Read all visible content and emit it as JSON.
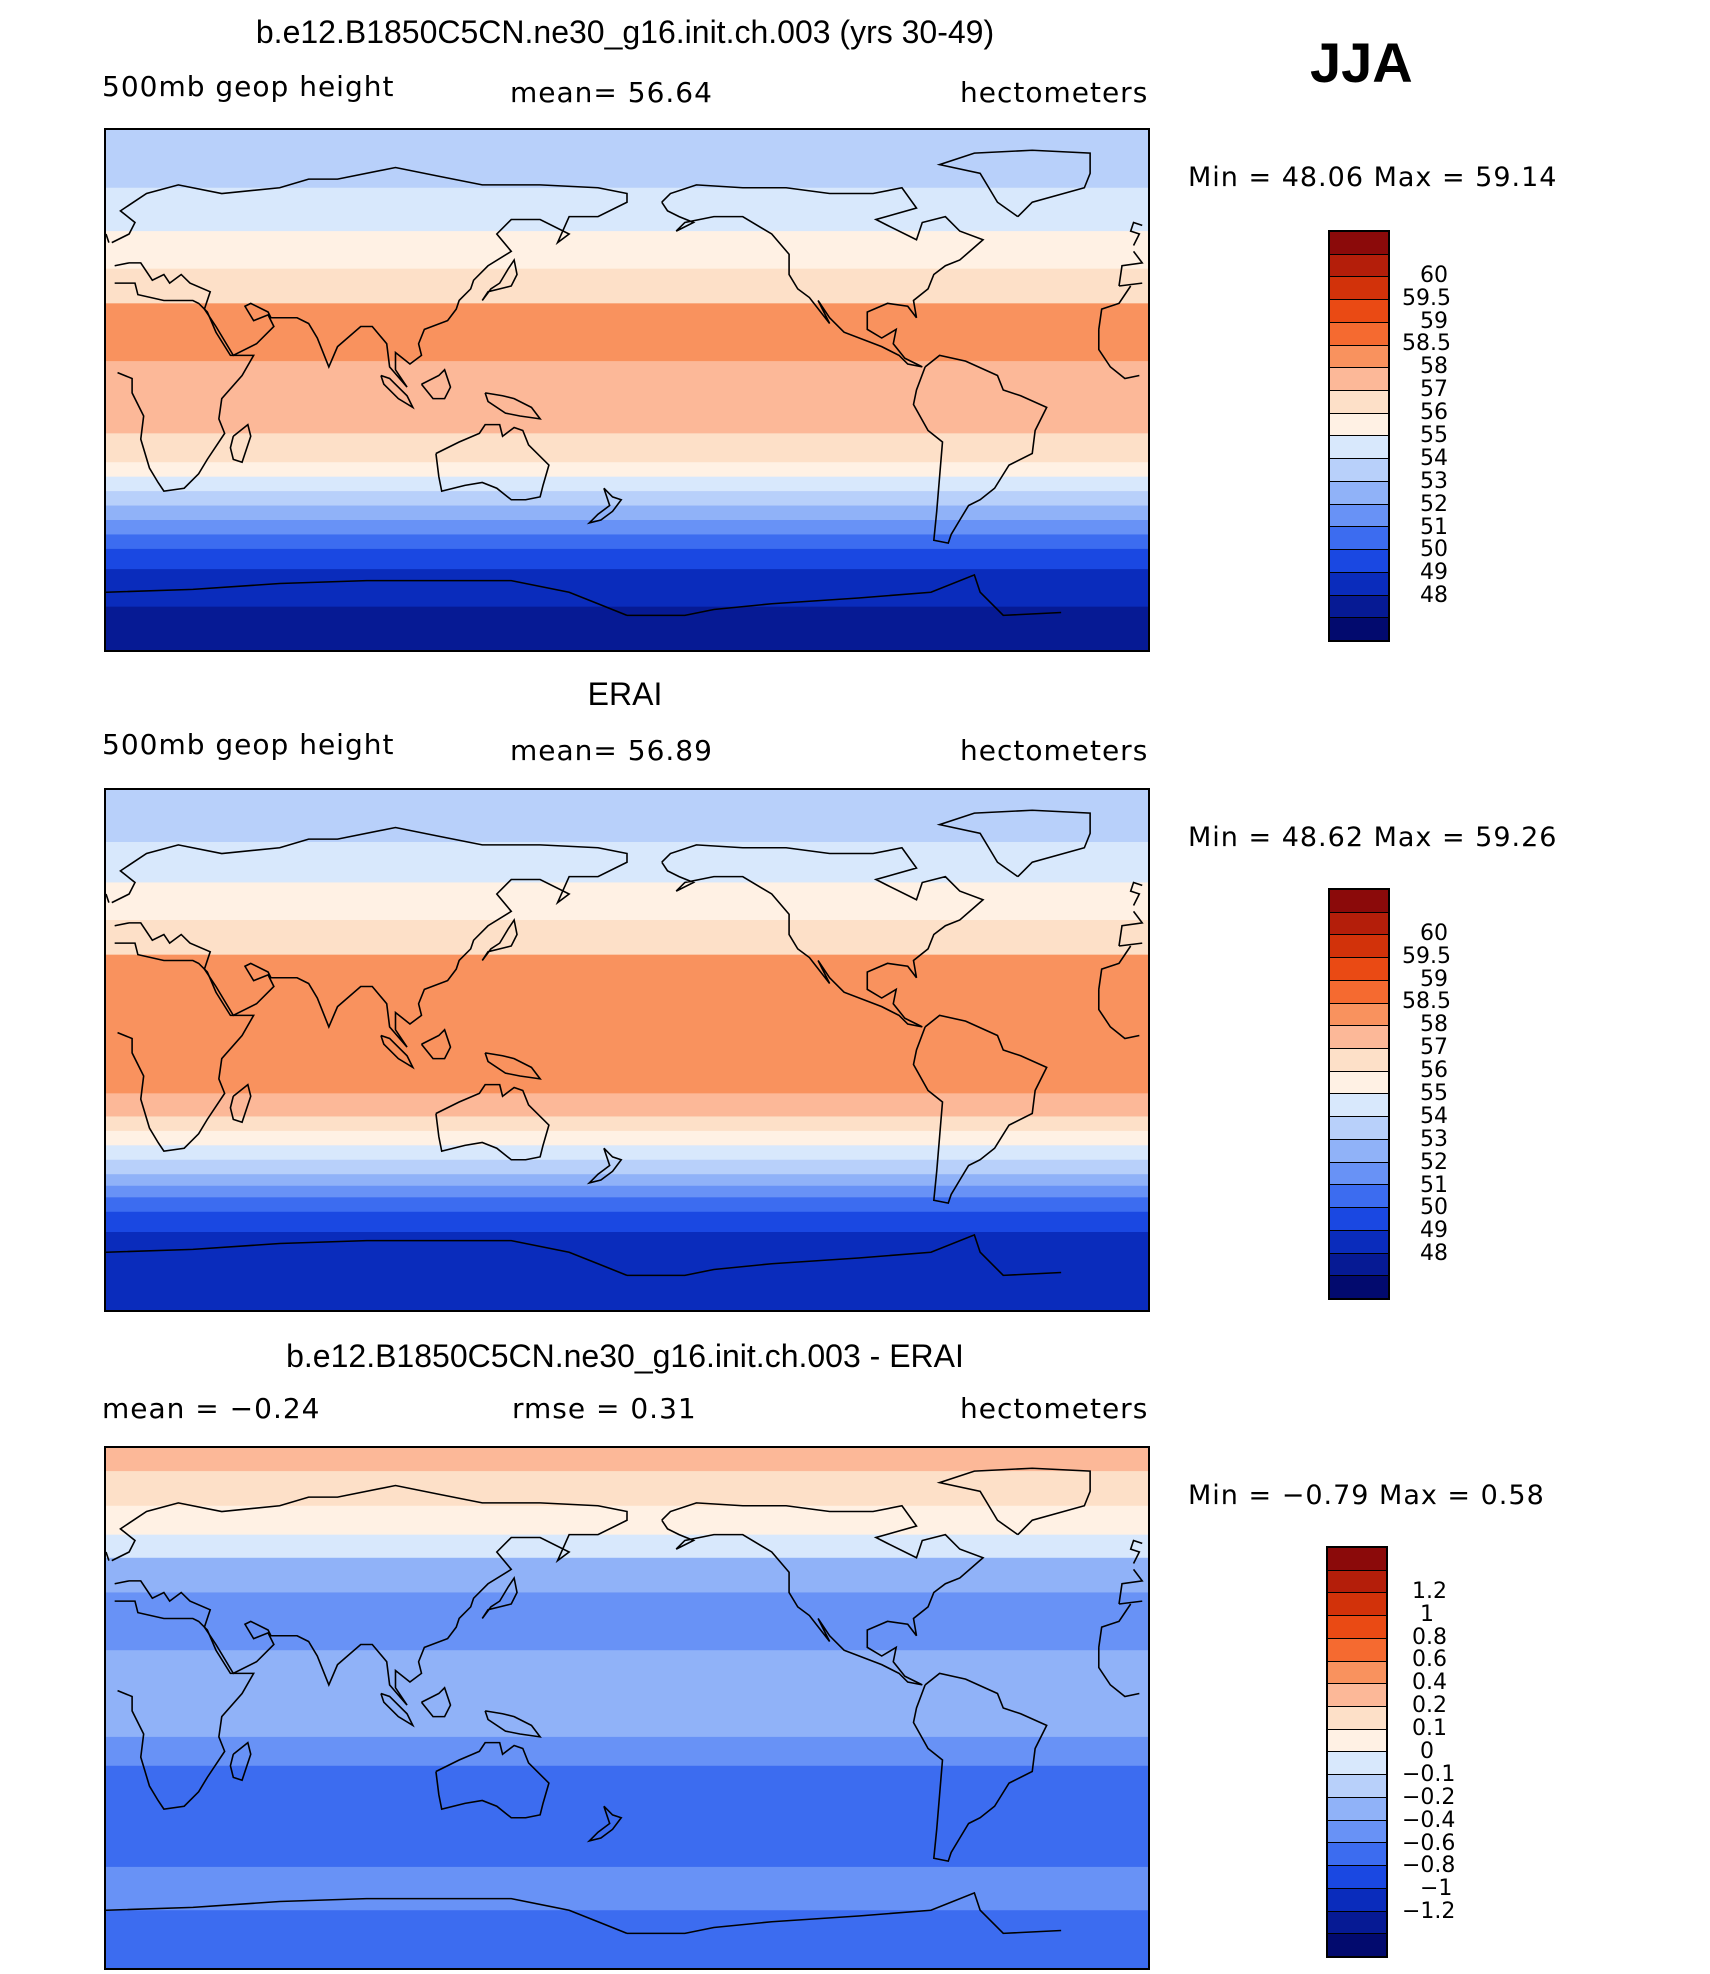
{
  "season": "JJA",
  "panels": [
    {
      "title": "b.e12.B1850C5CN.ne30_g16.init.ch.003 (yrs 30-49)",
      "left_label": "500mb  geop  height",
      "center_label": "mean=   56.64",
      "right_label": "hectometers",
      "minmax": "Min  =    48.06  Max  =    59.14",
      "scheme": "abs",
      "bands": [
        {
          "lat_from": 90,
          "lat_to": 70,
          "value": 54.5
        },
        {
          "lat_from": 70,
          "lat_to": 55,
          "value": 55.5
        },
        {
          "lat_from": 55,
          "lat_to": 42,
          "value": 56.5
        },
        {
          "lat_from": 42,
          "lat_to": 30,
          "value": 57.5
        },
        {
          "lat_from": 30,
          "lat_to": 10,
          "value": 58.75
        },
        {
          "lat_from": 10,
          "lat_to": -15,
          "value": 58.25
        },
        {
          "lat_from": -15,
          "lat_to": -25,
          "value": 57.5
        },
        {
          "lat_from": -25,
          "lat_to": -30,
          "value": 56.5
        },
        {
          "lat_from": -30,
          "lat_to": -35,
          "value": 55.5
        },
        {
          "lat_from": -35,
          "lat_to": -40,
          "value": 54.5
        },
        {
          "lat_from": -40,
          "lat_to": -45,
          "value": 53.5
        },
        {
          "lat_from": -45,
          "lat_to": -50,
          "value": 52.5
        },
        {
          "lat_from": -50,
          "lat_to": -55,
          "value": 51.5
        },
        {
          "lat_from": -55,
          "lat_to": -62,
          "value": 50.5
        },
        {
          "lat_from": -62,
          "lat_to": -75,
          "value": 49.5
        },
        {
          "lat_from": -75,
          "lat_to": -90,
          "value": 48.5
        }
      ]
    },
    {
      "title": "ERAI",
      "left_label": "500mb  geop  height",
      "center_label": "mean=   56.89",
      "right_label": "hectometers",
      "minmax": "Min  =    48.62  Max  =    59.26",
      "scheme": "abs",
      "bands": [
        {
          "lat_from": 90,
          "lat_to": 72,
          "value": 54.5
        },
        {
          "lat_from": 72,
          "lat_to": 58,
          "value": 55.5
        },
        {
          "lat_from": 58,
          "lat_to": 45,
          "value": 56.5
        },
        {
          "lat_from": 45,
          "lat_to": 33,
          "value": 57.5
        },
        {
          "lat_from": 33,
          "lat_to": 22,
          "value": 58.75
        },
        {
          "lat_from": 22,
          "lat_to": -15,
          "value": 58.75
        },
        {
          "lat_from": -15,
          "lat_to": -23,
          "value": 58.25
        },
        {
          "lat_from": -23,
          "lat_to": -28,
          "value": 57.5
        },
        {
          "lat_from": -28,
          "lat_to": -33,
          "value": 56.5
        },
        {
          "lat_from": -33,
          "lat_to": -38,
          "value": 55.5
        },
        {
          "lat_from": -38,
          "lat_to": -43,
          "value": 54.5
        },
        {
          "lat_from": -43,
          "lat_to": -47,
          "value": 53.5
        },
        {
          "lat_from": -47,
          "lat_to": -51,
          "value": 52.5
        },
        {
          "lat_from": -51,
          "lat_to": -56,
          "value": 51.5
        },
        {
          "lat_from": -56,
          "lat_to": -63,
          "value": 50.5
        },
        {
          "lat_from": -63,
          "lat_to": -90,
          "value": 49.5
        }
      ]
    },
    {
      "title": "b.e12.B1850C5CN.ne30_g16.init.ch.003 - ERAI",
      "left_label": "mean  =    −0.24",
      "center_label": "rmse  =     0.31",
      "right_label": "hectometers",
      "minmax": "Min  =    −0.79  Max  =      0.58",
      "scheme": "diff",
      "bands": [
        {
          "lat_from": 90,
          "lat_to": 82,
          "value": 0.5
        },
        {
          "lat_from": 82,
          "lat_to": 70,
          "value": 0.3
        },
        {
          "lat_from": 70,
          "lat_to": 60,
          "value": 0.15
        },
        {
          "lat_from": 60,
          "lat_to": 52,
          "value": 0.05
        },
        {
          "lat_from": 52,
          "lat_to": 40,
          "value": -0.15
        },
        {
          "lat_from": 40,
          "lat_to": 20,
          "value": -0.3
        },
        {
          "lat_from": 20,
          "lat_to": -10,
          "value": -0.15
        },
        {
          "lat_from": -10,
          "lat_to": -20,
          "value": -0.3
        },
        {
          "lat_from": -20,
          "lat_to": -35,
          "value": -0.5
        },
        {
          "lat_from": -35,
          "lat_to": -55,
          "value": -0.5
        },
        {
          "lat_from": -55,
          "lat_to": -70,
          "value": -0.3
        },
        {
          "lat_from": -70,
          "lat_to": -90,
          "value": -0.5
        }
      ]
    }
  ],
  "colorbars": {
    "abs": {
      "labels": [
        "60",
        "59.5",
        "59",
        "58.5",
        "58",
        "57",
        "56",
        "55",
        "54",
        "53",
        "52",
        "51",
        "50",
        "49",
        "48"
      ],
      "colors": [
        "#8b0a0a",
        "#b41e0a",
        "#d2320a",
        "#ea4a14",
        "#f56a30",
        "#f9925e",
        "#fcb898",
        "#fde0c8",
        "#fff1e4",
        "#d8e8fc",
        "#b8d0fa",
        "#90b2f8",
        "#6892f6",
        "#3c6cf0",
        "#1a48e2",
        "#0a2cbc",
        "#061a94",
        "#020a6e"
      ]
    },
    "diff": {
      "labels": [
        "1.2",
        "1",
        "0.8",
        "0.6",
        "0.4",
        "0.2",
        "0.1",
        "0",
        "−0.1",
        "−0.2",
        "−0.4",
        "−0.6",
        "−0.8",
        "−1",
        "−1.2"
      ],
      "colors": [
        "#8b0a0a",
        "#b41e0a",
        "#d2320a",
        "#ea4a14",
        "#f56a30",
        "#f9925e",
        "#fcb898",
        "#fde0c8",
        "#fff1e4",
        "#d8e8fc",
        "#b8d0fa",
        "#90b2f8",
        "#6892f6",
        "#3c6cf0",
        "#1a48e2",
        "#0a2cbc",
        "#061a94",
        "#020a6e"
      ]
    }
  }
}
